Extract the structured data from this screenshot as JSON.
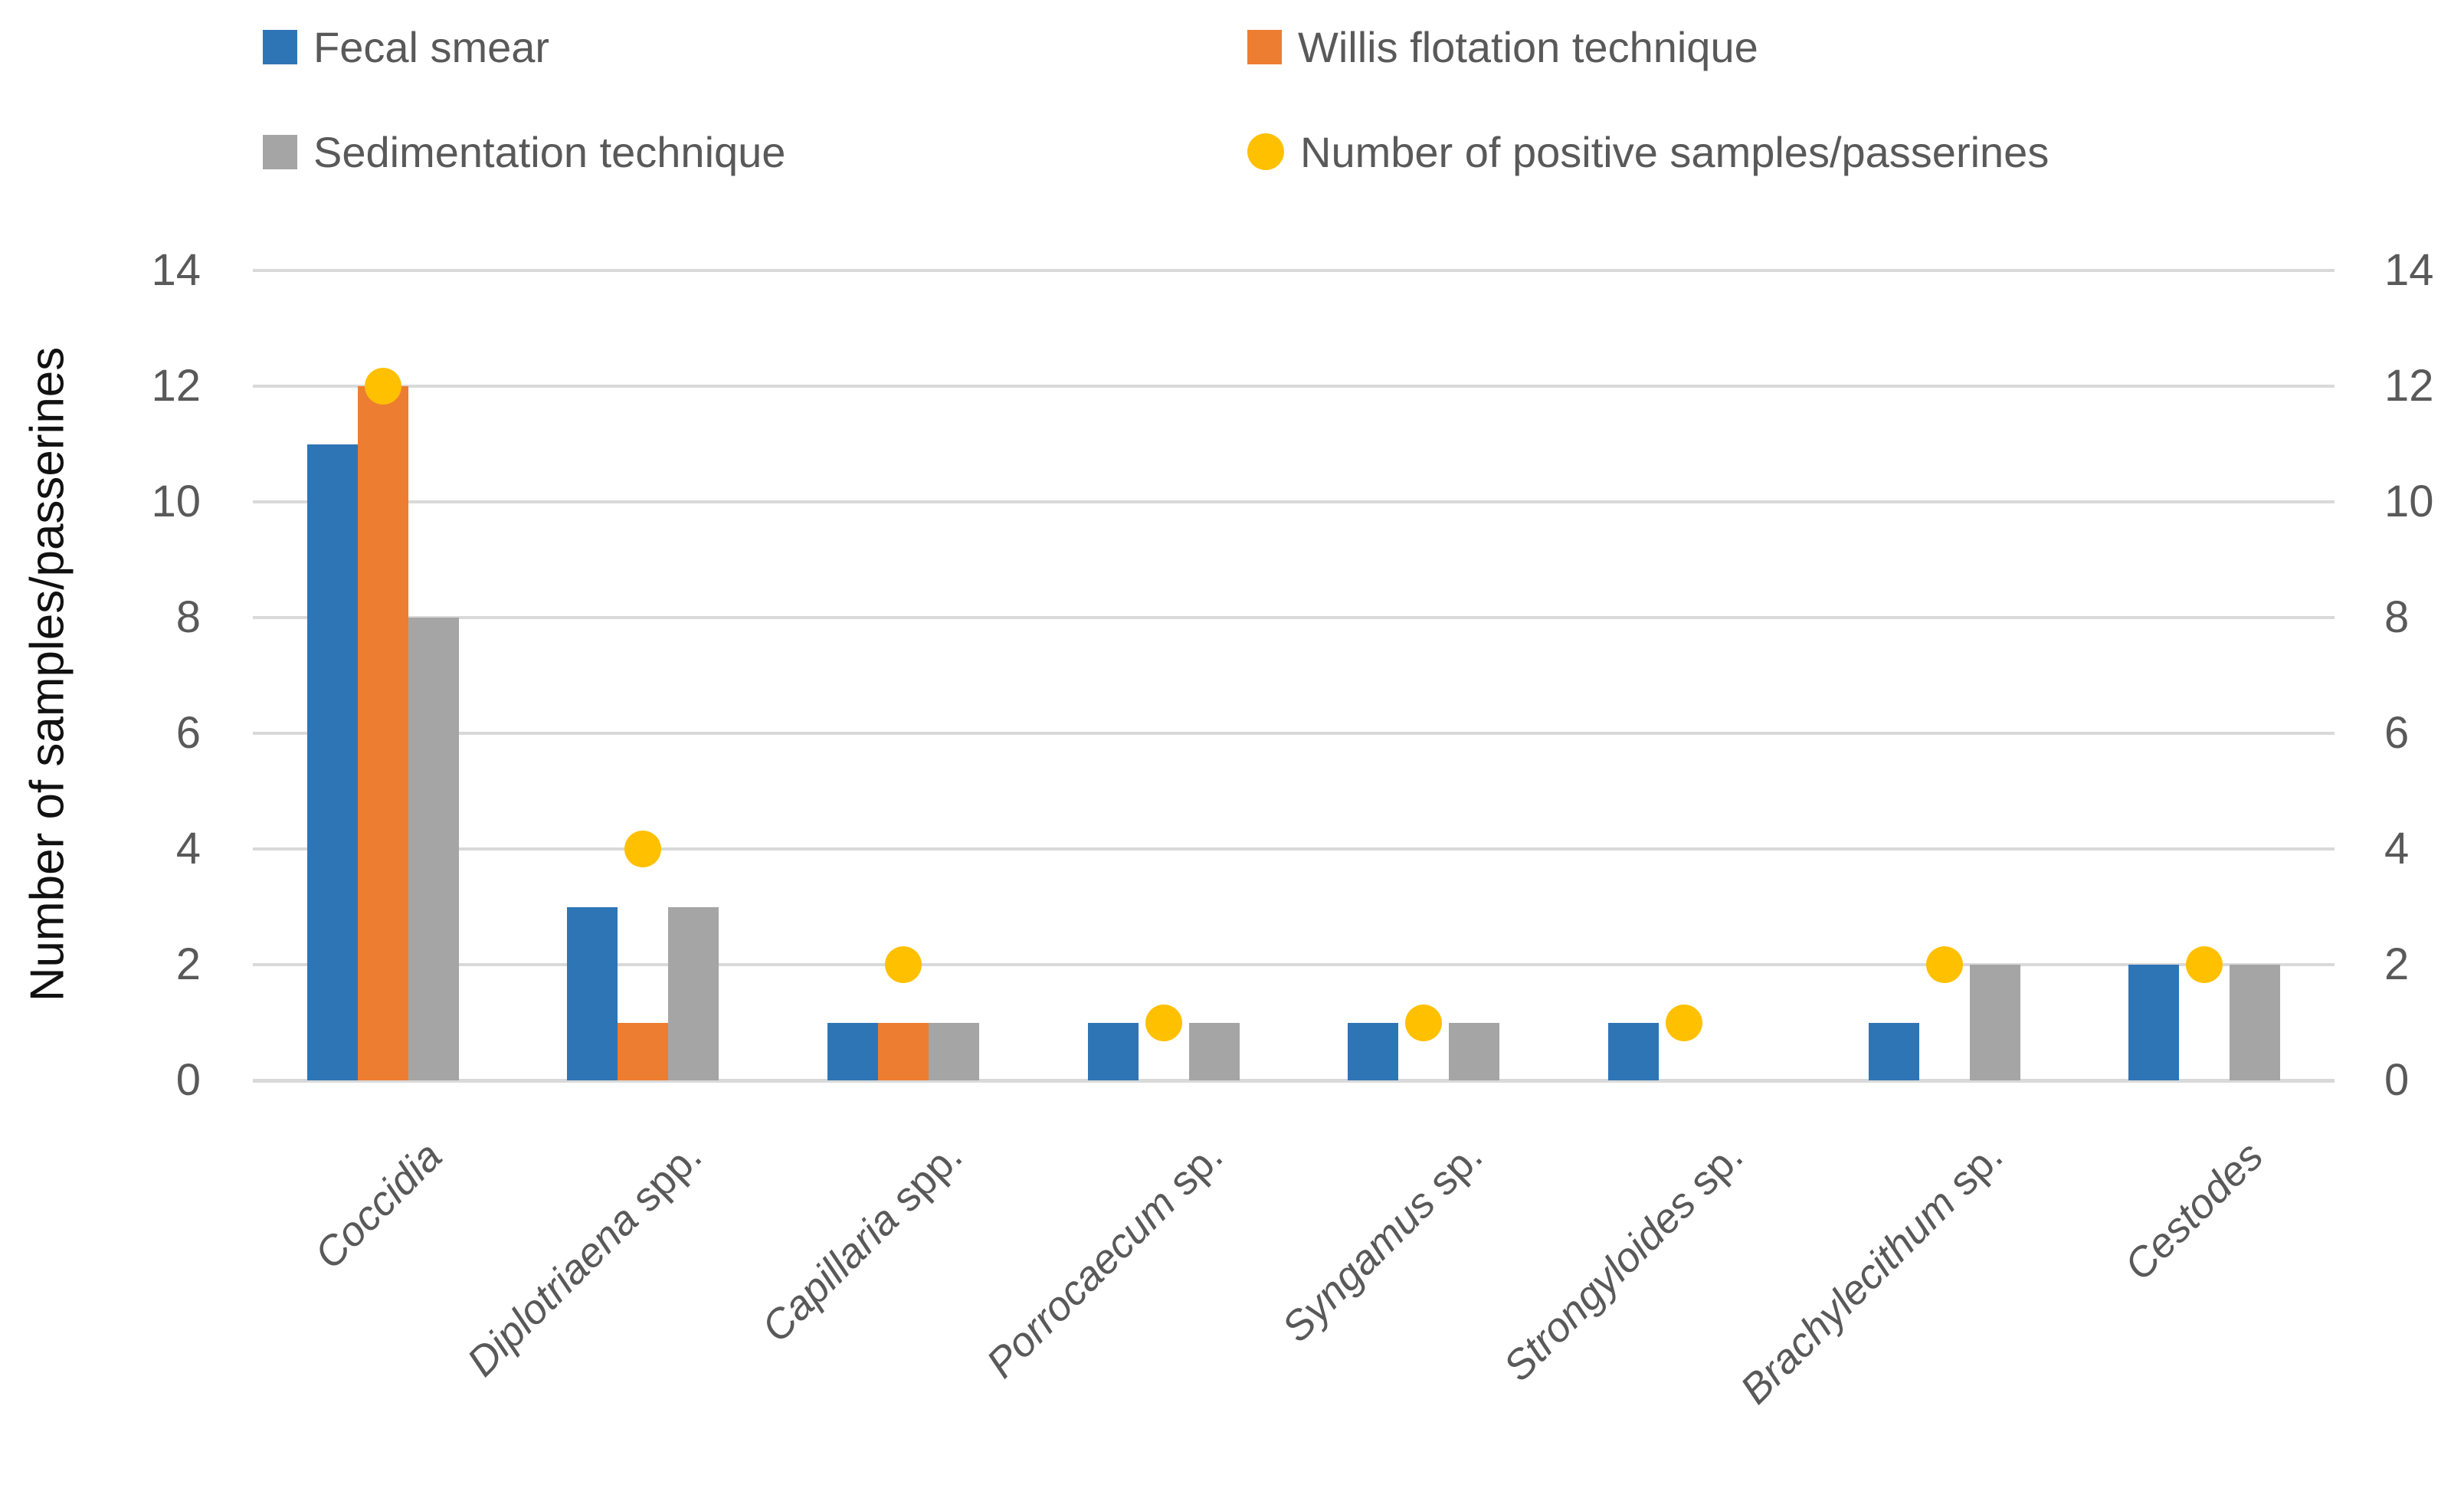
{
  "colors": {
    "blue": "#2E75B6",
    "orange": "#ED7D31",
    "gray": "#A5A5A5",
    "yellow": "#FFC000",
    "gridline": "#D9D9D9",
    "axis_line": "#D9D9D9",
    "tick_text": "#595959",
    "x_label_text": "#595959",
    "legend_text": "#595959",
    "y_axis_title_text": "#111111",
    "background": "#FFFFFF"
  },
  "legend": [
    {
      "label": "Fecal smear",
      "color": "#2E75B6",
      "marker": "square"
    },
    {
      "label": "Willis flotation technique",
      "color": "#ED7D31",
      "marker": "square"
    },
    {
      "label": "Sedimentation technique",
      "color": "#A5A5A5",
      "marker": "square"
    },
    {
      "label": "Number of positive samples/passerines",
      "color": "#FFC000",
      "marker": "circle"
    }
  ],
  "chart_data": {
    "type": "bar",
    "title": "",
    "xlabel": "",
    "ylabel": "Number of samples/passerines",
    "ylim": [
      0,
      14
    ],
    "yticks": [
      0,
      2,
      4,
      6,
      8,
      10,
      12,
      14
    ],
    "grid": true,
    "legend_position": "top",
    "dual_y_axis": true,
    "categories": [
      {
        "italic": "Coccidia",
        "plain": ""
      },
      {
        "italic": "Diplotriaena",
        "plain": " spp."
      },
      {
        "italic": "Capillaria",
        "plain": " spp."
      },
      {
        "italic": "Porrocaecum",
        "plain": " sp."
      },
      {
        "italic": "Syngamus",
        "plain": " sp."
      },
      {
        "italic": "Strongyloides",
        "plain": " sp."
      },
      {
        "italic": "Brachylecithum",
        "plain": " sp."
      },
      {
        "italic": "Cestodes",
        "plain": ""
      }
    ],
    "series": [
      {
        "name": "Fecal smear",
        "type": "bar",
        "color": "#2E75B6",
        "values": [
          11,
          3,
          1,
          1,
          1,
          1,
          1,
          2
        ]
      },
      {
        "name": "Willis flotation technique",
        "type": "bar",
        "color": "#ED7D31",
        "values": [
          12,
          1,
          1,
          0,
          0,
          0,
          0,
          0
        ]
      },
      {
        "name": "Sedimentation technique",
        "type": "bar",
        "color": "#A5A5A5",
        "values": [
          8,
          3,
          1,
          1,
          1,
          0,
          2,
          2
        ]
      },
      {
        "name": "Number of positive samples/passerines",
        "type": "scatter",
        "color": "#FFC000",
        "values": [
          12,
          4,
          2,
          1,
          1,
          1,
          2,
          2
        ]
      }
    ]
  }
}
